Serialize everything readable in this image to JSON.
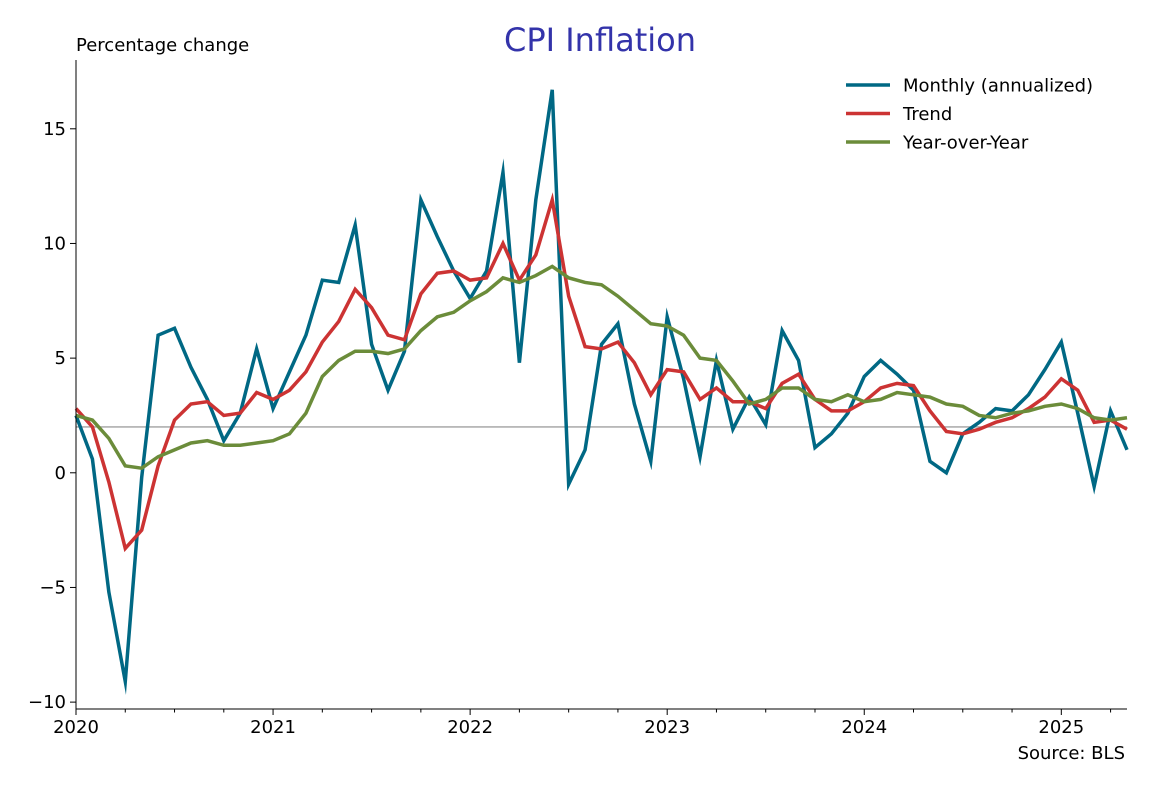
{
  "chart_data": {
    "type": "line",
    "title": "CPI Inflation",
    "ylabel": "Percentage change",
    "source": "Source: BLS",
    "title_color": "#3333aa",
    "x_start": "2020-01",
    "x_end": "2025-05",
    "ylim": [
      -10.3,
      18
    ],
    "yticks": [
      -10,
      -5,
      0,
      5,
      10,
      15
    ],
    "ytick_labels": [
      "−10",
      "−5",
      "0",
      "5",
      "10",
      "15"
    ],
    "xticks": [
      "2020",
      "2021",
      "2022",
      "2023",
      "2024",
      "2025"
    ],
    "reference_line": 2,
    "legend_position": "top-right",
    "grid": false,
    "series": [
      {
        "name": "Monthly (annualized)",
        "color": "#006884",
        "values": [
          2.5,
          0.6,
          -5.2,
          -9.1,
          -0.2,
          6.0,
          6.3,
          4.6,
          3.2,
          1.4,
          2.6,
          5.4,
          2.8,
          4.4,
          6.0,
          8.4,
          8.3,
          10.8,
          5.6,
          3.6,
          5.3,
          11.9,
          10.3,
          8.8,
          7.6,
          8.8,
          13.1,
          4.8,
          11.9,
          16.7,
          -0.5,
          1.0,
          5.6,
          6.5,
          3.0,
          0.5,
          6.8,
          4.1,
          0.7,
          4.9,
          1.9,
          3.3,
          2.1,
          6.2,
          4.9,
          1.1,
          1.7,
          2.6,
          4.2,
          4.9,
          4.3,
          3.6,
          0.5,
          0.0,
          1.7,
          2.2,
          2.8,
          2.7,
          3.4,
          4.5,
          5.7,
          2.6,
          -0.6,
          2.7,
          1.0
        ]
      },
      {
        "name": "Trend",
        "color": "#cc3333",
        "values": [
          2.8,
          2.0,
          -0.4,
          -3.3,
          -2.5,
          0.3,
          2.3,
          3.0,
          3.1,
          2.5,
          2.6,
          3.5,
          3.2,
          3.6,
          4.4,
          5.7,
          6.6,
          8.0,
          7.2,
          6.0,
          5.8,
          7.8,
          8.7,
          8.8,
          8.4,
          8.5,
          10.0,
          8.4,
          9.5,
          11.9,
          7.7,
          5.5,
          5.4,
          5.7,
          4.8,
          3.4,
          4.5,
          4.4,
          3.2,
          3.7,
          3.1,
          3.1,
          2.8,
          3.9,
          4.3,
          3.2,
          2.7,
          2.7,
          3.1,
          3.7,
          3.9,
          3.8,
          2.7,
          1.8,
          1.7,
          1.9,
          2.2,
          2.4,
          2.8,
          3.3,
          4.1,
          3.6,
          2.2,
          2.3,
          1.9
        ]
      },
      {
        "name": "Year-over-Year",
        "color": "#6b8c3a",
        "values": [
          2.5,
          2.3,
          1.5,
          0.3,
          0.2,
          0.7,
          1.0,
          1.3,
          1.4,
          1.2,
          1.2,
          1.3,
          1.4,
          1.7,
          2.6,
          4.2,
          4.9,
          5.3,
          5.3,
          5.2,
          5.4,
          6.2,
          6.8,
          7.0,
          7.5,
          7.9,
          8.5,
          8.3,
          8.6,
          9.0,
          8.5,
          8.3,
          8.2,
          7.7,
          7.1,
          6.5,
          6.4,
          6.0,
          5.0,
          4.9,
          4.0,
          3.0,
          3.2,
          3.7,
          3.7,
          3.2,
          3.1,
          3.4,
          3.1,
          3.2,
          3.5,
          3.4,
          3.3,
          3.0,
          2.9,
          2.5,
          2.4,
          2.6,
          2.7,
          2.9,
          3.0,
          2.8,
          2.4,
          2.3,
          2.4
        ]
      }
    ]
  }
}
